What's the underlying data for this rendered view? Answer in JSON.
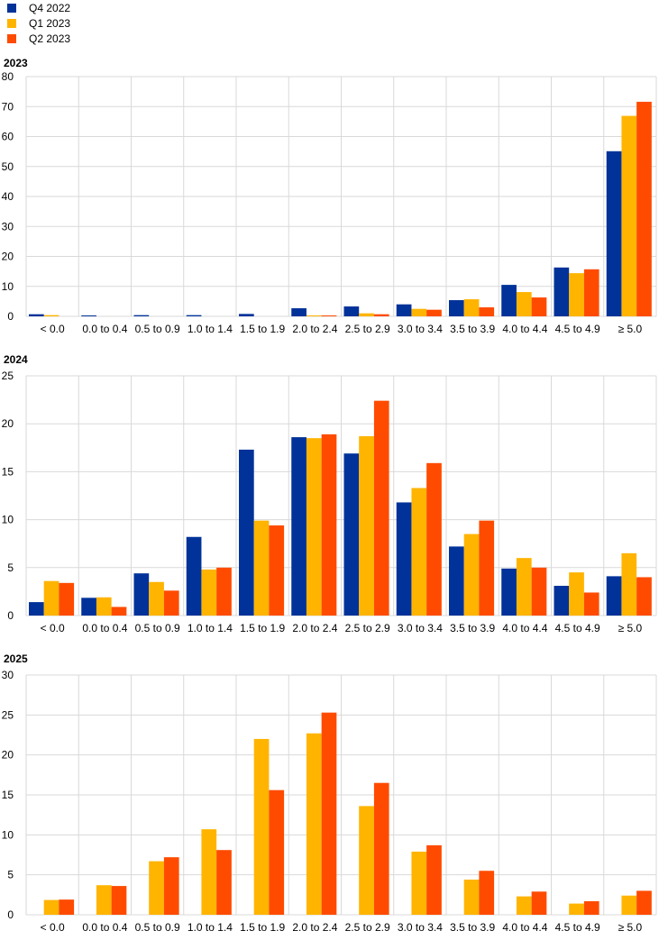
{
  "legend": [
    {
      "label": "Q4 2022",
      "color": "#003299"
    },
    {
      "label": "Q1 2023",
      "color": "#FFB400"
    },
    {
      "label": "Q2 2023",
      "color": "#FF4B00"
    }
  ],
  "chart_data": [
    {
      "type": "bar",
      "title": "2023",
      "categories": [
        "< 0.0",
        "0.0 to 0.4",
        "0.5 to 0.9",
        "1.0 to 1.4",
        "1.5 to 1.9",
        "2.0 to 2.4",
        "2.5 to 2.9",
        "3.0 to 3.4",
        "3.5 to 3.9",
        "4.0 to 4.4",
        "4.5 to 4.9",
        "≥ 5.0"
      ],
      "ylim": [
        0,
        80
      ],
      "yticks": [
        0,
        10,
        20,
        30,
        40,
        50,
        60,
        70,
        80
      ],
      "grid": true,
      "legend_position": "top-left",
      "series": [
        {
          "name": "Q4 2022",
          "values": [
            0.7,
            0.3,
            0.4,
            0.4,
            0.8,
            2.7,
            3.3,
            4.0,
            5.4,
            10.5,
            16.3,
            55.1
          ]
        },
        {
          "name": "Q1 2023",
          "values": [
            0.4,
            0,
            0,
            0,
            0,
            0.3,
            1.0,
            2.5,
            5.7,
            8.1,
            14.4,
            66.9
          ]
        },
        {
          "name": "Q2 2023",
          "values": [
            0,
            0,
            0,
            0,
            0,
            0.3,
            0.7,
            2.2,
            3.0,
            6.3,
            15.7,
            71.6
          ]
        }
      ]
    },
    {
      "type": "bar",
      "title": "2024",
      "categories": [
        "< 0.0",
        "0.0 to 0.4",
        "0.5 to 0.9",
        "1.0 to 1.4",
        "1.5 to 1.9",
        "2.0 to 2.4",
        "2.5 to 2.9",
        "3.0 to 3.4",
        "3.5 to 3.9",
        "4.0 to 4.4",
        "4.5 to 4.9",
        "≥ 5.0"
      ],
      "ylim": [
        0,
        25
      ],
      "yticks": [
        0,
        5,
        10,
        15,
        20,
        25
      ],
      "grid": true,
      "series": [
        {
          "name": "Q4 2022",
          "values": [
            1.4,
            1.85,
            4.4,
            8.2,
            17.3,
            18.6,
            16.9,
            11.8,
            7.2,
            4.9,
            3.1,
            4.1
          ]
        },
        {
          "name": "Q1 2023",
          "values": [
            3.6,
            1.9,
            3.5,
            4.8,
            9.9,
            18.5,
            18.7,
            13.3,
            8.5,
            6.0,
            4.5,
            6.5
          ]
        },
        {
          "name": "Q2 2023",
          "values": [
            3.4,
            0.9,
            2.6,
            5.0,
            9.4,
            18.9,
            22.4,
            15.9,
            9.9,
            5.0,
            2.4,
            4.0
          ]
        }
      ]
    },
    {
      "type": "bar",
      "title": "2025",
      "categories": [
        "< 0.0",
        "0.0 to 0.4",
        "0.5 to 0.9",
        "1.0 to 1.4",
        "1.5 to 1.9",
        "2.0 to 2.4",
        "2.5 to 2.9",
        "3.0 to 3.4",
        "3.5 to 3.9",
        "4.0 to 4.4",
        "4.5 to 4.9",
        "≥ 5.0"
      ],
      "ylim": [
        0,
        30
      ],
      "yticks": [
        0,
        5,
        10,
        15,
        20,
        25,
        30
      ],
      "grid": true,
      "series": [
        {
          "name": "Q4 2022",
          "values": [
            null,
            null,
            null,
            null,
            null,
            null,
            null,
            null,
            null,
            null,
            null,
            null
          ]
        },
        {
          "name": "Q1 2023",
          "values": [
            1.85,
            3.7,
            6.7,
            10.7,
            22.0,
            22.7,
            13.6,
            7.9,
            4.4,
            2.3,
            1.4,
            2.4
          ]
        },
        {
          "name": "Q2 2023",
          "values": [
            1.9,
            3.6,
            7.2,
            8.1,
            15.6,
            25.3,
            16.5,
            8.7,
            5.5,
            2.9,
            1.7,
            3.0
          ]
        }
      ]
    }
  ]
}
